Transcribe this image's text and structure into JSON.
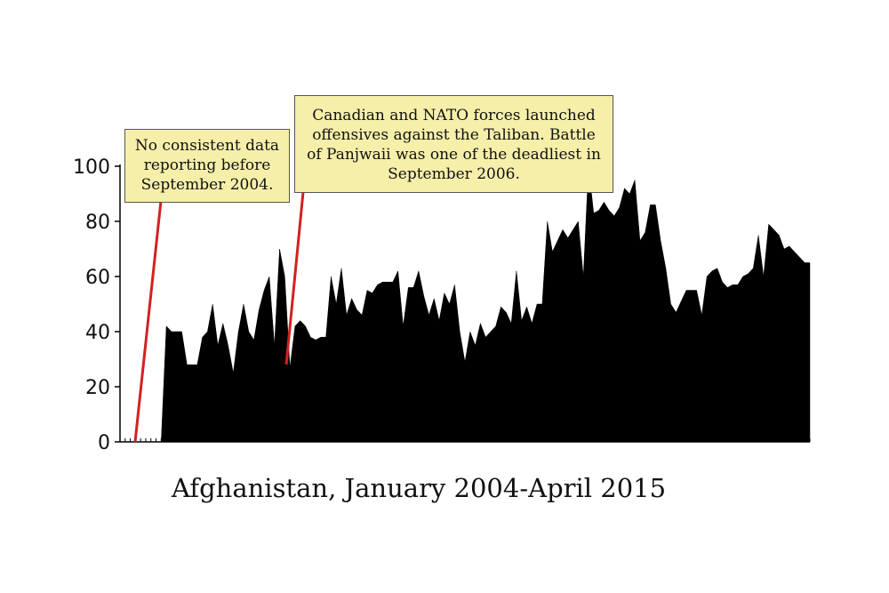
{
  "chart_data": {
    "type": "area",
    "title": "",
    "caption": "Afghanistan, January 2004-April 2015",
    "xlabel": "",
    "ylabel": "",
    "ylim": [
      0,
      100
    ],
    "yticks": [
      "0",
      "20",
      "40",
      "60",
      "80",
      "100"
    ],
    "x_range": [
      "2004-01",
      "2015-04"
    ],
    "series_color": "#000000",
    "annotation_line_color": "#d42020",
    "series": [
      {
        "values": [
          0,
          0,
          0,
          0,
          0,
          0,
          0,
          0,
          0,
          42,
          40,
          40,
          40,
          28,
          28,
          28,
          38,
          40,
          50,
          35,
          43,
          35,
          25,
          40,
          50,
          40,
          37,
          48,
          55,
          60,
          35,
          70,
          60,
          27,
          42,
          44,
          42,
          38,
          37,
          38,
          38,
          60,
          50,
          63,
          46,
          52,
          48,
          46,
          55,
          54,
          57,
          58,
          58,
          58,
          62,
          42,
          56,
          56,
          62,
          53,
          46,
          52,
          44,
          54,
          50,
          57,
          40,
          29,
          40,
          35,
          43,
          38,
          40,
          42,
          49,
          47,
          43,
          62,
          44,
          49,
          43,
          50,
          50,
          80,
          69,
          73,
          77,
          74,
          77,
          80,
          60,
          100,
          83,
          84,
          87,
          84,
          82,
          85,
          92,
          90,
          95,
          73,
          76,
          86,
          86,
          73,
          63,
          50,
          47,
          51,
          55,
          55,
          55,
          46,
          60,
          62,
          63,
          58,
          56,
          57,
          57,
          60,
          61,
          63,
          75,
          60,
          79,
          77,
          75,
          70,
          71,
          69,
          67,
          65,
          65
        ]
      }
    ],
    "annotations": [
      {
        "lines": [
          "No consistent data",
          "reporting before",
          "September 2004."
        ]
      },
      {
        "lines": [
          "Canadian and NATO forces launched",
          "offensives against the Taliban. Battle",
          "of Panjwaii was one of the deadliest in",
          "September 2006."
        ]
      }
    ]
  }
}
